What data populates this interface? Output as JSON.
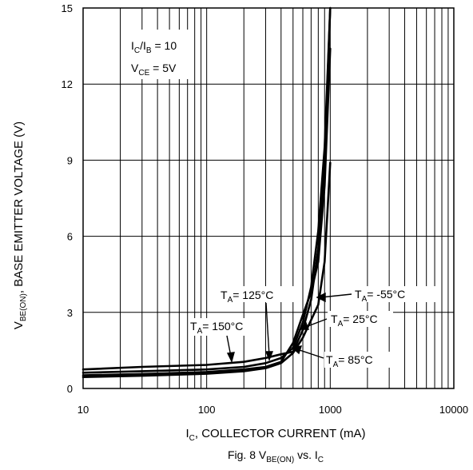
{
  "chart_data": {
    "type": "line",
    "xscale": "log",
    "xlim": [
      10,
      10000
    ],
    "ylim": [
      0,
      15
    ],
    "x_ticks": [
      "10",
      "100",
      "1000",
      "10000"
    ],
    "y_ticks": [
      "0",
      "3",
      "6",
      "9",
      "12",
      "15"
    ],
    "grid": true,
    "xlabel": {
      "main": "I",
      "sub": "C",
      "rest": ", COLLECTOR CURRENT (mA)"
    },
    "ylabel": {
      "main": "V",
      "sub": "BE(ON)",
      "rest": ", BASE EMITTER VOLTAGE (V)"
    },
    "caption": {
      "pre": "Fig. 8  V",
      "sub1": "BE(ON)",
      "mid": " vs. I",
      "sub2": "C"
    },
    "conditions": [
      {
        "t1": "I",
        "s1": "C",
        "t2": "/I",
        "s2": "B",
        "t3": " = 10"
      },
      {
        "t1": "V",
        "s1": "CE",
        "t2": " = 5V"
      }
    ],
    "series": [
      {
        "name": "TA = 150°C",
        "tA": "T",
        "tSub": "A",
        "tRest": "= 150°C",
        "points": [
          [
            10,
            0.75
          ],
          [
            30,
            0.85
          ],
          [
            100,
            0.93
          ],
          [
            200,
            1.05
          ],
          [
            300,
            1.2
          ],
          [
            400,
            1.35
          ],
          [
            500,
            1.45
          ],
          [
            600,
            2.3
          ],
          [
            700,
            3.5
          ],
          [
            800,
            5.5
          ],
          [
            900,
            9.0
          ],
          [
            1000,
            15.0
          ]
        ]
      },
      {
        "name": "TA = 125°C",
        "tA": "T",
        "tSub": "A",
        "tRest": "= 125°C",
        "points": [
          [
            10,
            0.62
          ],
          [
            30,
            0.68
          ],
          [
            100,
            0.75
          ],
          [
            200,
            0.85
          ],
          [
            300,
            1.0
          ],
          [
            400,
            1.2
          ],
          [
            500,
            1.6
          ],
          [
            600,
            2.6
          ],
          [
            700,
            4.0
          ],
          [
            800,
            6.2
          ],
          [
            900,
            9.5
          ],
          [
            1000,
            15.0
          ]
        ]
      },
      {
        "name": "TA = 25°C",
        "tA": "T",
        "tSub": "A",
        "tRest": "= 25°C",
        "points": [
          [
            10,
            0.52
          ],
          [
            30,
            0.57
          ],
          [
            100,
            0.65
          ],
          [
            200,
            0.75
          ],
          [
            300,
            0.85
          ],
          [
            400,
            1.05
          ],
          [
            500,
            1.8
          ],
          [
            600,
            2.9
          ],
          [
            700,
            3.8
          ],
          [
            800,
            5.0
          ],
          [
            900,
            8.0
          ],
          [
            1000,
            13.4
          ]
        ]
      },
      {
        "name": "TA = 85°C",
        "tA": "T",
        "tSub": "A",
        "tRest": "= 85°C",
        "points": [
          [
            10,
            0.45
          ],
          [
            30,
            0.5
          ],
          [
            100,
            0.58
          ],
          [
            200,
            0.68
          ],
          [
            300,
            0.8
          ],
          [
            400,
            1.0
          ],
          [
            500,
            1.4
          ],
          [
            600,
            2.0
          ],
          [
            700,
            2.7
          ],
          [
            800,
            3.3
          ],
          [
            900,
            5.0
          ],
          [
            1000,
            8.9
          ]
        ]
      },
      {
        "name": "TA = -55°C",
        "tA": "T",
        "tSub": "A",
        "tRest": "= -55°C",
        "points": []
      }
    ]
  }
}
